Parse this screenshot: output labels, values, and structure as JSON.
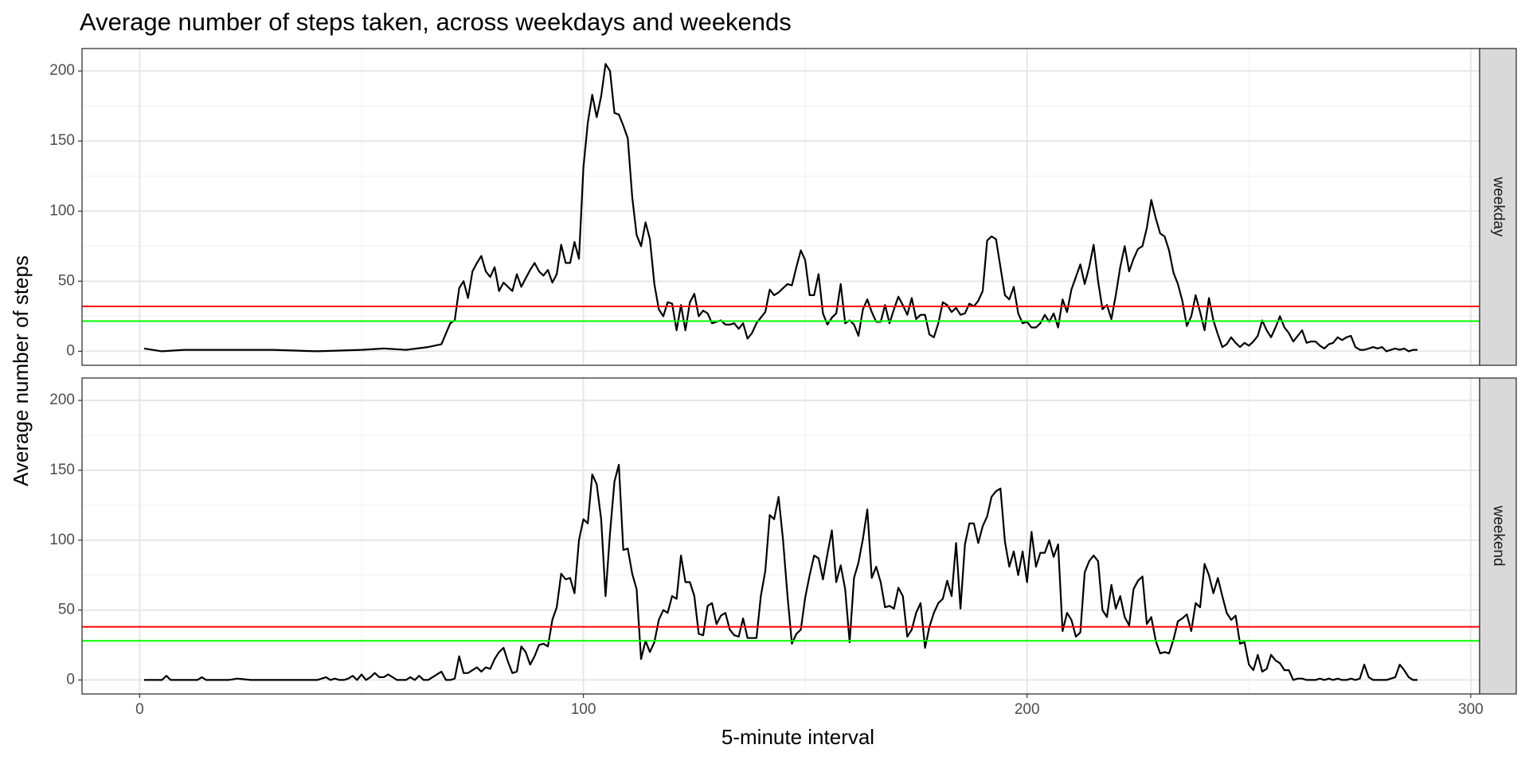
{
  "chart_data": {
    "type": "line",
    "title": "Average number of steps taken, across weekdays and weekends",
    "xlabel": "5-minute interval",
    "ylabel": "Average number of steps",
    "xlim": [
      -13,
      302
    ],
    "xticks": [
      0,
      100,
      200,
      300
    ],
    "xminor": [
      50,
      150,
      250
    ],
    "ylim": [
      -10,
      216
    ],
    "yticks": [
      0,
      50,
      100,
      150,
      200
    ],
    "yminor": [
      25,
      75,
      125,
      175
    ],
    "grid": true,
    "panels": [
      {
        "strip": "weekday",
        "color": "#000000",
        "hlines": [
          {
            "value": 32,
            "color": "#ff0000"
          },
          {
            "value": 21.5,
            "color": "#00ff00"
          }
        ],
        "x": [
          1,
          5,
          10,
          20,
          30,
          40,
          50,
          55,
          60,
          65,
          68,
          70,
          71,
          72,
          73,
          74,
          75,
          76,
          77,
          78,
          79,
          80,
          81,
          82,
          83,
          84,
          85,
          86,
          87,
          88,
          89,
          90,
          91,
          92,
          93,
          94,
          95,
          96,
          97,
          98,
          99,
          100,
          101,
          102,
          103,
          104,
          105,
          106,
          107,
          108,
          109,
          110,
          111,
          112,
          113,
          114,
          115,
          116,
          117,
          118,
          119,
          120,
          121,
          122,
          123,
          124,
          125,
          126,
          127,
          128,
          129,
          130,
          131,
          132,
          133,
          134,
          135,
          136,
          137,
          138,
          139,
          140,
          141,
          142,
          143,
          144,
          145,
          146,
          147,
          148,
          149,
          150,
          151,
          152,
          153,
          154,
          155,
          156,
          157,
          158,
          159,
          160,
          161,
          162,
          163,
          164,
          165,
          166,
          167,
          168,
          169,
          170,
          171,
          172,
          173,
          174,
          175,
          176,
          177,
          178,
          179,
          180,
          181,
          182,
          183,
          184,
          185,
          186,
          187,
          188,
          189,
          190,
          191,
          192,
          193,
          194,
          195,
          196,
          197,
          198,
          199,
          200,
          201,
          202,
          203,
          204,
          205,
          206,
          207,
          208,
          209,
          210,
          211,
          212,
          213,
          214,
          215,
          216,
          217,
          218,
          219,
          220,
          221,
          222,
          223,
          224,
          225,
          226,
          227,
          228,
          229,
          230,
          231,
          232,
          233,
          234,
          235,
          236,
          237,
          238,
          239,
          240,
          241,
          242,
          243,
          244,
          245,
          246,
          247,
          248,
          249,
          250,
          251,
          252,
          253,
          254,
          255,
          256,
          257,
          258,
          259,
          260,
          261,
          262,
          263,
          264,
          265,
          266,
          267,
          268,
          269,
          270,
          271,
          272,
          273,
          274,
          275,
          276,
          277,
          278,
          279,
          280,
          281,
          282,
          283,
          284,
          285,
          286,
          287,
          288
        ],
        "values": [
          2,
          0,
          1,
          1,
          1,
          0,
          1,
          2,
          1,
          3,
          5,
          20,
          22,
          45,
          50,
          38,
          57,
          63,
          68,
          57,
          53,
          60,
          43,
          49,
          46,
          43,
          55,
          46,
          52,
          58,
          63,
          57,
          54,
          58,
          49,
          55,
          76,
          63,
          63,
          78,
          66,
          131,
          163,
          183,
          167,
          182,
          205,
          200,
          170,
          169,
          161,
          152,
          110,
          83,
          75,
          92,
          80,
          48,
          30,
          25,
          35,
          34,
          15,
          33,
          15,
          35,
          41,
          25,
          29,
          27,
          20,
          21,
          22,
          19,
          19,
          20,
          16,
          20,
          9,
          13,
          20,
          24,
          28,
          44,
          40,
          42,
          45,
          48,
          47,
          60,
          72,
          65,
          40,
          40,
          55,
          27,
          19,
          24,
          27,
          48,
          20,
          22,
          19,
          11,
          30,
          37,
          28,
          21,
          21,
          33,
          20,
          30,
          39,
          33,
          26,
          38,
          23,
          26,
          26,
          12,
          10,
          20,
          35,
          33,
          28,
          31,
          26,
          27,
          34,
          32,
          36,
          43,
          79,
          82,
          80,
          60,
          40,
          37,
          46,
          27,
          20,
          21,
          17,
          17,
          20,
          26,
          21,
          27,
          17,
          37,
          28,
          44,
          53,
          62,
          48,
          60,
          76,
          50,
          30,
          33,
          23,
          40,
          60,
          75,
          57,
          66,
          73,
          75,
          88,
          108,
          95,
          84,
          82,
          72,
          56,
          48,
          36,
          18,
          25,
          40,
          28,
          15,
          38,
          22,
          12,
          3,
          5,
          10,
          6,
          3,
          6,
          4,
          7,
          11,
          22,
          15,
          10,
          17,
          25,
          17,
          13,
          7,
          11,
          15,
          6,
          7,
          7,
          4,
          2,
          5,
          6,
          10,
          8,
          10,
          11,
          3,
          1,
          1,
          2,
          3,
          2,
          3,
          0,
          1,
          2,
          1,
          2,
          0,
          1,
          1
        ]
      },
      {
        "strip": "weekend",
        "color": "#000000",
        "hlines": [
          {
            "value": 38,
            "color": "#ff0000"
          },
          {
            "value": 28,
            "color": "#00ff00"
          }
        ],
        "x": [
          1,
          5,
          6,
          7,
          10,
          13,
          14,
          15,
          20,
          22,
          25,
          30,
          40,
          41,
          42,
          43,
          44,
          45,
          46,
          47,
          48,
          49,
          50,
          51,
          52,
          53,
          54,
          55,
          56,
          57,
          58,
          59,
          60,
          61,
          62,
          63,
          64,
          65,
          66,
          67,
          68,
          69,
          70,
          71,
          72,
          73,
          74,
          75,
          76,
          77,
          78,
          79,
          80,
          81,
          82,
          83,
          84,
          85,
          86,
          87,
          88,
          89,
          90,
          91,
          92,
          93,
          94,
          95,
          96,
          97,
          98,
          99,
          100,
          101,
          102,
          103,
          104,
          105,
          106,
          107,
          108,
          109,
          110,
          111,
          112,
          113,
          114,
          115,
          116,
          117,
          118,
          119,
          120,
          121,
          122,
          123,
          124,
          125,
          126,
          127,
          128,
          129,
          130,
          131,
          132,
          133,
          134,
          135,
          136,
          137,
          138,
          139,
          140,
          141,
          142,
          143,
          144,
          145,
          146,
          147,
          148,
          149,
          150,
          151,
          152,
          153,
          154,
          155,
          156,
          157,
          158,
          159,
          160,
          161,
          162,
          163,
          164,
          165,
          166,
          167,
          168,
          169,
          170,
          171,
          172,
          173,
          174,
          175,
          176,
          177,
          178,
          179,
          180,
          181,
          182,
          183,
          184,
          185,
          186,
          187,
          188,
          189,
          190,
          191,
          192,
          193,
          194,
          195,
          196,
          197,
          198,
          199,
          200,
          201,
          202,
          203,
          204,
          205,
          206,
          207,
          208,
          209,
          210,
          211,
          212,
          213,
          214,
          215,
          216,
          217,
          218,
          219,
          220,
          221,
          222,
          223,
          224,
          225,
          226,
          227,
          228,
          229,
          230,
          231,
          232,
          233,
          234,
          235,
          236,
          237,
          238,
          239,
          240,
          241,
          242,
          243,
          244,
          245,
          246,
          247,
          248,
          249,
          250,
          251,
          252,
          253,
          254,
          255,
          256,
          257,
          258,
          259,
          260,
          261,
          262,
          263,
          264,
          265,
          266,
          267,
          268,
          269,
          270,
          271,
          272,
          273,
          274,
          275,
          276,
          277,
          278,
          279,
          280,
          281,
          282,
          283,
          284,
          285,
          286,
          287,
          288
        ],
        "values": [
          0,
          0,
          3,
          0,
          0,
          0,
          2,
          0,
          0,
          1,
          0,
          0,
          0,
          1,
          2,
          0,
          1,
          0,
          0,
          1,
          3,
          0,
          4,
          0,
          2,
          5,
          2,
          2,
          4,
          2,
          0,
          0,
          0,
          2,
          0,
          3,
          0,
          0,
          2,
          4,
          6,
          0,
          0,
          1,
          17,
          5,
          5,
          7,
          9,
          6,
          9,
          8,
          15,
          20,
          23,
          13,
          5,
          6,
          24,
          20,
          11,
          17,
          25,
          26,
          24,
          43,
          52,
          76,
          72,
          73,
          62,
          100,
          115,
          112,
          147,
          140,
          115,
          60,
          105,
          142,
          154,
          93,
          94,
          76,
          65,
          15,
          28,
          20,
          27,
          43,
          50,
          48,
          60,
          58,
          89,
          70,
          70,
          60,
          33,
          32,
          53,
          55,
          40,
          46,
          48,
          36,
          32,
          31,
          44,
          30,
          30,
          30,
          60,
          78,
          118,
          115,
          131,
          100,
          60,
          26,
          33,
          36,
          59,
          75,
          89,
          87,
          72,
          90,
          107,
          70,
          82,
          65,
          27,
          73,
          84,
          101,
          122,
          73,
          81,
          70,
          52,
          53,
          51,
          66,
          60,
          31,
          36,
          48,
          55,
          23,
          38,
          48,
          55,
          58,
          71,
          60,
          98,
          51,
          97,
          112,
          112,
          98,
          110,
          117,
          131,
          135,
          137,
          99,
          81,
          92,
          75,
          92,
          70,
          106,
          81,
          91,
          91,
          100,
          88,
          97,
          35,
          48,
          43,
          31,
          34,
          77,
          85,
          89,
          85,
          50,
          45,
          68,
          51,
          60,
          45,
          39,
          65,
          71,
          74,
          40,
          45,
          28,
          19,
          20,
          19,
          29,
          42,
          44,
          47,
          35,
          55,
          52,
          83,
          75,
          62,
          73,
          60,
          48,
          43,
          46,
          26,
          27,
          11,
          7,
          18,
          6,
          8,
          18,
          14,
          12,
          7,
          7,
          0,
          1,
          1,
          0,
          0,
          0,
          1,
          0,
          1,
          0,
          1,
          0,
          0,
          1,
          0,
          1,
          11,
          2,
          0,
          0,
          0,
          0,
          1,
          2,
          11,
          7,
          2,
          0,
          0
        ]
      }
    ]
  }
}
